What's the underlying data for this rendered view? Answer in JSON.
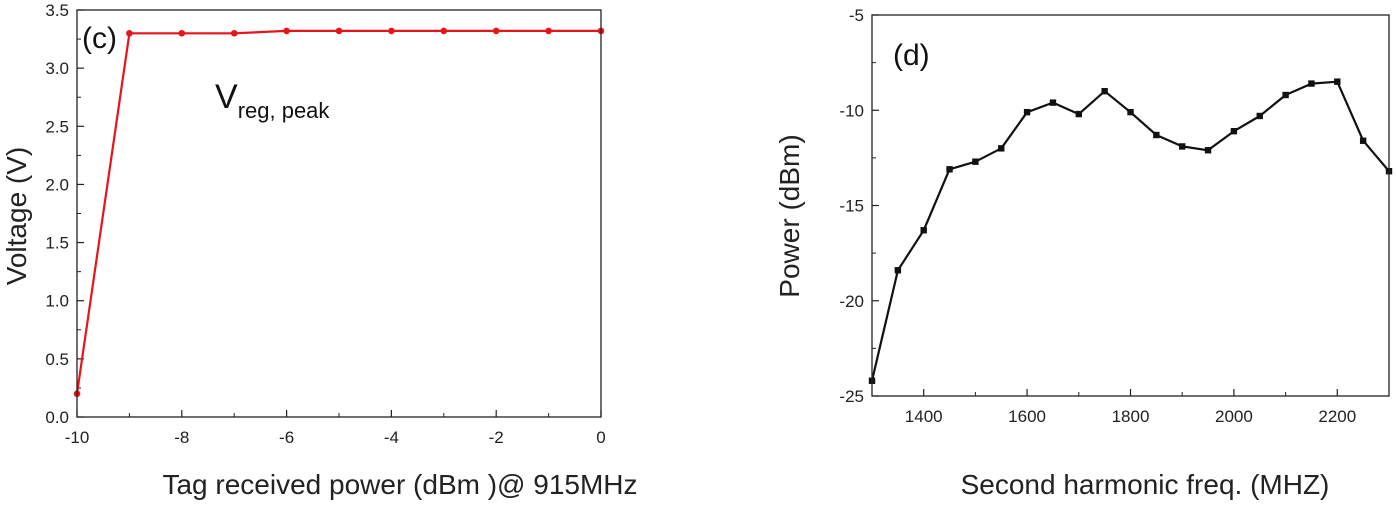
{
  "chart_data": [
    {
      "type": "line",
      "panel_label": "(c)",
      "title": "",
      "xlabel": "Tag received power  (dBm )@ 915MHz",
      "ylabel": "Voltage (V)",
      "xlim": [
        -10,
        0
      ],
      "ylim": [
        0,
        3.5
      ],
      "xticks": [
        "-10",
        "-8",
        "-6",
        "-4",
        "-2",
        "0"
      ],
      "yticks": [
        "0.0",
        "0.5",
        "1.0",
        "1.5",
        "2.0",
        "2.5",
        "3.0",
        "3.5"
      ],
      "grid": false,
      "color": "#e8141b",
      "annotation": {
        "main": "V",
        "subscript": "reg, peak"
      },
      "series": [
        {
          "x": [
            -10,
            -9,
            -8,
            -7,
            -6,
            -5,
            -4,
            -3,
            -2,
            -1,
            0
          ],
          "values": [
            0.2,
            3.3,
            3.3,
            3.3,
            3.32,
            3.32,
            3.32,
            3.32,
            3.32,
            3.32,
            3.32
          ]
        }
      ]
    },
    {
      "type": "line",
      "panel_label": "(d)",
      "title": "",
      "xlabel": "Second harmonic freq. (MHZ)",
      "ylabel": "Power (dBm)",
      "xlim": [
        1300,
        2300
      ],
      "ylim": [
        -25,
        -5
      ],
      "xticks": [
        "1400",
        "1600",
        "1800",
        "2000",
        "2200"
      ],
      "yticks": [
        "-25",
        "-20",
        "-15",
        "-10",
        "-5"
      ],
      "grid": false,
      "color": "#111111",
      "series": [
        {
          "x": [
            1300,
            1350,
            1400,
            1450,
            1500,
            1550,
            1600,
            1650,
            1700,
            1750,
            1800,
            1850,
            1900,
            1950,
            2000,
            2050,
            2100,
            2150,
            2200,
            2250,
            2300
          ],
          "values": [
            -24.2,
            -18.4,
            -16.3,
            -13.1,
            -12.7,
            -12.0,
            -10.1,
            -9.6,
            -10.2,
            -9.0,
            -10.1,
            -11.3,
            -11.9,
            -12.1,
            -11.1,
            -10.3,
            -9.2,
            -8.6,
            -8.5,
            -11.6,
            -13.2
          ]
        }
      ]
    }
  ]
}
